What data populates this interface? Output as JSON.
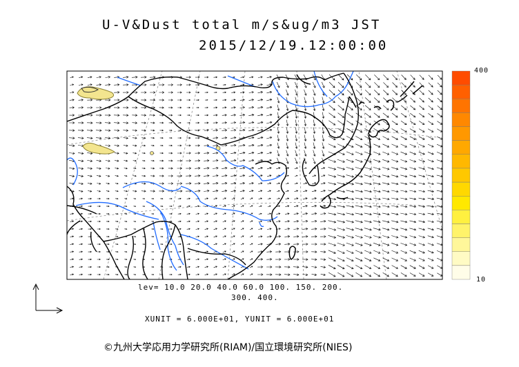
{
  "header": {
    "title_line1": "U-V&Dust total m/s&ug/m3 JST",
    "title_line2": "2015/12/19.12:00:00"
  },
  "legend": {
    "levels_line1": "lev= 10.0 20.0 40.0 60.0 100. 150. 200.",
    "levels_line2": "300. 400.",
    "colorbar_max": "400",
    "colorbar_min": "10",
    "colors": [
      "#fffde8",
      "#fffbc4",
      "#fff79a",
      "#fff36a",
      "#fff040",
      "#ffe800",
      "#ffd800",
      "#ffc800",
      "#ffb800",
      "#ffa800",
      "#ff9800",
      "#ff8800",
      "#ff7400",
      "#ff6000",
      "#ff4c00"
    ]
  },
  "units": {
    "text": "XUNIT = 6.000E+01, YUNIT = 6.000E+01"
  },
  "footer": {
    "credit": "©九州大学応用力学研究所(RIAM)/国立環境研究所(NIES)"
  },
  "map_colors": {
    "coast": "#000000",
    "river": "#1f6bff",
    "graticule": "#8c8c8c",
    "dust": "#f3e58f",
    "arrow": "#000000"
  }
}
